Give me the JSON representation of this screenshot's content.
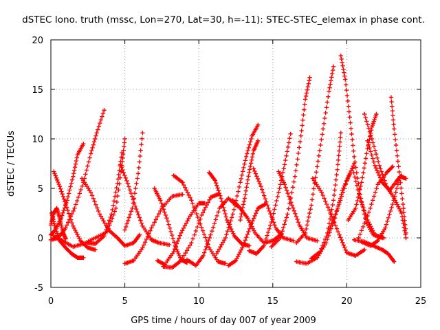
{
  "chart_data": {
    "type": "scatter",
    "title": "dSTEC Iono. truth (mssc, Lon=270, Lat=30, h=-11): STEC-STEC_elemax in phase cont.",
    "xlabel": "GPS time / hours of day 007 of year 2009",
    "ylabel": "dSTEC  / TECUs",
    "xlim": [
      0,
      25
    ],
    "ylim": [
      -5,
      20
    ],
    "xticks": [
      0,
      5,
      10,
      15,
      20,
      25
    ],
    "yticks": [
      -5,
      0,
      5,
      10,
      15,
      20
    ],
    "grid": true,
    "marker": "+",
    "color": "#ff0000",
    "series": [
      {
        "points": [
          [
            0.05,
            2.5
          ],
          [
            0.3,
            1.0
          ],
          [
            0.6,
            -0.3
          ],
          [
            1.0,
            -1.0
          ],
          [
            1.4,
            -1.6
          ],
          [
            1.8,
            -2.0
          ],
          [
            2.2,
            -2.0
          ]
        ]
      },
      {
        "points": [
          [
            0.0,
            0.3
          ],
          [
            0.3,
            0.8
          ],
          [
            0.7,
            2.0
          ],
          [
            1.1,
            3.8
          ],
          [
            1.5,
            6.2
          ],
          [
            1.8,
            8.4
          ],
          [
            2.2,
            9.5
          ]
        ]
      },
      {
        "points": [
          [
            0.0,
            -0.2
          ],
          [
            0.5,
            0.0
          ],
          [
            1.0,
            1.0
          ],
          [
            1.6,
            3.0
          ],
          [
            2.2,
            5.6
          ],
          [
            2.7,
            8.5
          ],
          [
            3.1,
            10.6
          ],
          [
            3.6,
            12.9
          ]
        ]
      },
      {
        "points": [
          [
            0.2,
            6.7
          ],
          [
            0.6,
            5.2
          ],
          [
            1.0,
            3.4
          ],
          [
            1.5,
            1.2
          ],
          [
            2.0,
            -0.3
          ],
          [
            2.5,
            -1.0
          ],
          [
            3.0,
            -1.2
          ]
        ]
      },
      {
        "points": [
          [
            0.2,
            0.2
          ],
          [
            0.8,
            -0.3
          ],
          [
            1.5,
            -0.9
          ],
          [
            2.2,
            -0.6
          ],
          [
            3.0,
            0.0
          ],
          [
            3.8,
            0.6
          ],
          [
            4.4,
            3.0
          ],
          [
            4.8,
            7.3
          ],
          [
            5.0,
            10.0
          ]
        ]
      },
      {
        "points": [
          [
            2.1,
            6.0
          ],
          [
            2.7,
            4.6
          ],
          [
            3.3,
            2.4
          ],
          [
            3.9,
            0.8
          ],
          [
            4.5,
            0.0
          ],
          [
            5.0,
            -0.8
          ],
          [
            5.6,
            -0.5
          ],
          [
            6.0,
            0.3
          ]
        ]
      },
      {
        "points": [
          [
            4.7,
            7.4
          ],
          [
            5.2,
            5.5
          ],
          [
            5.7,
            3.2
          ],
          [
            6.2,
            1.2
          ],
          [
            6.8,
            -0.2
          ],
          [
            7.3,
            -0.5
          ],
          [
            8.0,
            -0.7
          ]
        ]
      },
      {
        "points": [
          [
            5.0,
            -2.6
          ],
          [
            5.6,
            -2.3
          ],
          [
            6.2,
            -1.0
          ],
          [
            6.8,
            1.0
          ],
          [
            7.5,
            3.0
          ],
          [
            8.2,
            4.2
          ],
          [
            8.9,
            4.4
          ]
        ]
      },
      {
        "points": [
          [
            5.0,
            0.8
          ],
          [
            5.5,
            3.0
          ],
          [
            5.9,
            6.5
          ],
          [
            6.2,
            10.6
          ]
        ]
      },
      {
        "points": [
          [
            7.0,
            5.0
          ],
          [
            7.4,
            3.8
          ],
          [
            7.9,
            1.7
          ],
          [
            8.4,
            -0.8
          ],
          [
            8.8,
            -2.2
          ],
          [
            9.2,
            -2.5
          ]
        ]
      },
      {
        "points": [
          [
            7.2,
            -2.3
          ],
          [
            7.7,
            -2.7
          ],
          [
            8.3,
            -1.4
          ],
          [
            8.8,
            0.5
          ],
          [
            9.4,
            2.2
          ],
          [
            10.0,
            3.5
          ],
          [
            10.4,
            3.5
          ]
        ]
      },
      {
        "points": [
          [
            7.6,
            -2.9
          ],
          [
            8.2,
            -3.0
          ],
          [
            8.8,
            -2.3
          ],
          [
            9.5,
            -0.5
          ],
          [
            10.2,
            2.3
          ],
          [
            10.8,
            4.1
          ],
          [
            11.3,
            4.4
          ]
        ]
      },
      {
        "points": [
          [
            8.3,
            6.3
          ],
          [
            8.9,
            5.6
          ],
          [
            9.5,
            3.8
          ],
          [
            10.1,
            1.4
          ],
          [
            10.7,
            -1.0
          ],
          [
            11.3,
            -2.4
          ],
          [
            11.8,
            -2.6
          ]
        ]
      },
      {
        "points": [
          [
            10.7,
            6.6
          ],
          [
            11.1,
            5.8
          ],
          [
            11.5,
            4.0
          ],
          [
            11.9,
            1.8
          ],
          [
            12.4,
            0.2
          ],
          [
            12.9,
            -0.6
          ],
          [
            13.4,
            -0.8
          ]
        ]
      },
      {
        "points": [
          [
            9.2,
            -2.2
          ],
          [
            9.8,
            -2.8
          ],
          [
            10.3,
            -1.8
          ],
          [
            10.8,
            0.3
          ],
          [
            11.4,
            3.0
          ],
          [
            12.0,
            4.0
          ],
          [
            12.6,
            3.2
          ]
        ]
      },
      {
        "points": [
          [
            12.0,
            -2.8
          ],
          [
            12.5,
            -2.3
          ],
          [
            13.0,
            -0.8
          ],
          [
            13.5,
            1.2
          ],
          [
            14.0,
            3.0
          ],
          [
            14.5,
            3.4
          ]
        ]
      },
      {
        "points": [
          [
            11.2,
            -1.6
          ],
          [
            11.8,
            0.0
          ],
          [
            12.3,
            2.4
          ],
          [
            12.8,
            5.6
          ],
          [
            13.2,
            8.2
          ],
          [
            13.6,
            10.3
          ],
          [
            14.0,
            11.4
          ]
        ]
      },
      {
        "points": [
          [
            12.3,
            3.8
          ],
          [
            12.8,
            3.0
          ],
          [
            13.3,
            2.0
          ],
          [
            13.8,
            0.5
          ],
          [
            14.4,
            -0.5
          ],
          [
            15.0,
            -0.3
          ],
          [
            15.6,
            0.4
          ]
        ]
      },
      {
        "points": [
          [
            12.8,
            1.8
          ],
          [
            13.1,
            4.0
          ],
          [
            13.4,
            6.6
          ],
          [
            13.7,
            8.8
          ],
          [
            14.0,
            9.8
          ]
        ]
      },
      {
        "points": [
          [
            13.4,
            -1.3
          ],
          [
            13.9,
            -1.6
          ],
          [
            14.4,
            -0.8
          ],
          [
            14.9,
            1.6
          ],
          [
            15.4,
            4.6
          ],
          [
            15.8,
            7.4
          ],
          [
            16.2,
            10.5
          ]
        ]
      },
      {
        "points": [
          [
            13.7,
            7.0
          ],
          [
            14.2,
            5.2
          ],
          [
            14.7,
            3.0
          ],
          [
            15.2,
            1.0
          ],
          [
            15.7,
            0.0
          ],
          [
            16.4,
            -0.3
          ]
        ]
      },
      {
        "points": [
          [
            14.9,
            -0.9
          ],
          [
            15.5,
            0.0
          ],
          [
            16.0,
            2.4
          ],
          [
            16.5,
            6.2
          ],
          [
            16.9,
            10.3
          ],
          [
            17.2,
            14.0
          ],
          [
            17.5,
            16.2
          ]
        ]
      },
      {
        "points": [
          [
            15.4,
            6.7
          ],
          [
            15.8,
            5.4
          ],
          [
            16.3,
            3.3
          ],
          [
            16.8,
            1.3
          ],
          [
            17.3,
            0.0
          ],
          [
            18.0,
            -0.3
          ]
        ]
      },
      {
        "points": [
          [
            16.6,
            -0.5
          ],
          [
            17.2,
            0.5
          ],
          [
            17.6,
            3.3
          ],
          [
            18.0,
            7.2
          ],
          [
            18.4,
            11.0
          ],
          [
            18.8,
            14.8
          ],
          [
            19.1,
            17.3
          ]
        ]
      },
      {
        "points": [
          [
            16.6,
            -2.4
          ],
          [
            17.3,
            -2.6
          ],
          [
            18.0,
            -2.0
          ],
          [
            18.6,
            -0.5
          ],
          [
            19.2,
            2.0
          ],
          [
            19.7,
            4.8
          ],
          [
            20.2,
            6.4
          ]
        ]
      },
      {
        "points": [
          [
            17.6,
            -2.1
          ],
          [
            18.2,
            -1.4
          ],
          [
            18.8,
            0.8
          ],
          [
            19.4,
            3.0
          ],
          [
            20.0,
            5.8
          ],
          [
            20.5,
            7.5
          ]
        ]
      },
      {
        "points": [
          [
            18.7,
            0.5
          ],
          [
            19.1,
            3.8
          ],
          [
            19.4,
            7.4
          ],
          [
            19.6,
            10.6
          ]
        ]
      },
      {
        "points": [
          [
            19.6,
            18.4
          ],
          [
            19.9,
            16.0
          ],
          [
            20.2,
            12.2
          ],
          [
            20.5,
            8.2
          ],
          [
            20.9,
            4.4
          ],
          [
            21.3,
            1.6
          ],
          [
            21.8,
            0.3
          ],
          [
            22.4,
            0.0
          ]
        ]
      },
      {
        "points": [
          [
            17.7,
            6.0
          ],
          [
            18.3,
            4.6
          ],
          [
            18.9,
            2.5
          ],
          [
            19.5,
            0.3
          ],
          [
            20.0,
            -1.5
          ],
          [
            20.6,
            -1.8
          ],
          [
            21.2,
            -1.2
          ]
        ]
      },
      {
        "points": [
          [
            20.1,
            1.8
          ],
          [
            20.6,
            3.0
          ],
          [
            21.0,
            5.6
          ],
          [
            21.4,
            9.0
          ],
          [
            21.7,
            11.2
          ],
          [
            22.0,
            12.5
          ]
        ]
      },
      {
        "points": [
          [
            20.4,
            7.0
          ],
          [
            20.9,
            4.0
          ],
          [
            21.4,
            1.8
          ],
          [
            21.9,
            0.3
          ],
          [
            22.5,
            0.0
          ]
        ]
      },
      {
        "points": [
          [
            21.2,
            12.5
          ],
          [
            21.7,
            10.0
          ],
          [
            22.2,
            7.3
          ],
          [
            22.7,
            5.2
          ],
          [
            23.2,
            4.0
          ],
          [
            23.7,
            2.5
          ],
          [
            24.0,
            0.0
          ]
        ]
      },
      {
        "points": [
          [
            21.0,
            -0.4
          ],
          [
            21.6,
            -0.8
          ],
          [
            22.1,
            -0.3
          ],
          [
            22.6,
            1.0
          ],
          [
            23.1,
            3.4
          ],
          [
            23.6,
            6.2
          ],
          [
            24.0,
            6.0
          ]
        ]
      },
      {
        "points": [
          [
            20.8,
            0.0
          ],
          [
            21.5,
            2.6
          ],
          [
            22.1,
            5.4
          ],
          [
            22.7,
            6.6
          ],
          [
            23.1,
            7.2
          ]
        ]
      },
      {
        "points": [
          [
            21.4,
            9.8
          ],
          [
            21.9,
            7.3
          ],
          [
            22.4,
            5.6
          ],
          [
            22.9,
            4.8
          ],
          [
            23.4,
            5.8
          ],
          [
            23.7,
            6.3
          ]
        ]
      },
      {
        "points": [
          [
            23.0,
            14.2
          ],
          [
            23.2,
            11.0
          ],
          [
            23.5,
            7.2
          ],
          [
            23.8,
            3.4
          ],
          [
            24.0,
            0.5
          ]
        ]
      },
      {
        "points": [
          [
            20.5,
            -0.2
          ],
          [
            21.2,
            -0.4
          ],
          [
            21.8,
            -0.8
          ],
          [
            22.4,
            -1.2
          ],
          [
            22.8,
            -1.6
          ],
          [
            23.2,
            -2.4
          ]
        ]
      },
      {
        "points": [
          [
            0.0,
            1.3
          ],
          [
            0.2,
            2.5
          ],
          [
            0.4,
            3.0
          ],
          [
            0.6,
            2.0
          ],
          [
            0.8,
            0.6
          ],
          [
            1.0,
            -0.1
          ]
        ]
      },
      {
        "points": [
          [
            2.5,
            -0.5
          ],
          [
            3.0,
            -0.6
          ],
          [
            3.6,
            0.2
          ],
          [
            4.1,
            2.4
          ],
          [
            4.5,
            5.5
          ],
          [
            4.8,
            8.6
          ]
        ]
      }
    ]
  }
}
